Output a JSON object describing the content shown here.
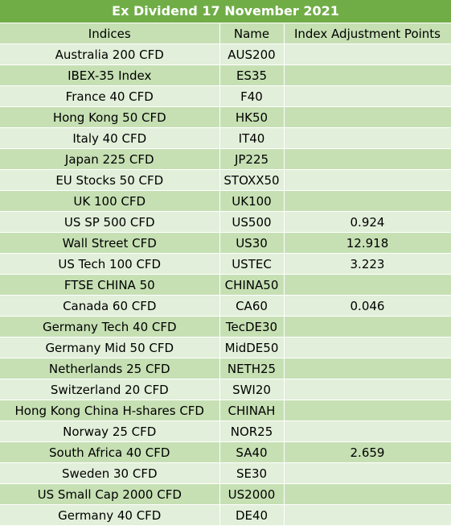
{
  "title": "Ex Dividend 17 November 2021",
  "headers": [
    "Indices",
    "Name",
    "Index Adjustment Points"
  ],
  "rows": [
    {
      "index": "Australia 200 CFD",
      "name": "AUS200",
      "points": ""
    },
    {
      "index": "IBEX-35 Index",
      "name": "ES35",
      "points": ""
    },
    {
      "index": "France 40 CFD",
      "name": "F40",
      "points": ""
    },
    {
      "index": "Hong Kong 50 CFD",
      "name": "HK50",
      "points": ""
    },
    {
      "index": "Italy 40 CFD",
      "name": "IT40",
      "points": ""
    },
    {
      "index": "Japan 225 CFD",
      "name": "JP225",
      "points": ""
    },
    {
      "index": "EU Stocks 50 CFD",
      "name": "STOXX50",
      "points": ""
    },
    {
      "index": "UK 100 CFD",
      "name": "UK100",
      "points": ""
    },
    {
      "index": "US SP 500 CFD",
      "name": "US500",
      "points": "0.924"
    },
    {
      "index": "Wall Street CFD",
      "name": "US30",
      "points": "12.918"
    },
    {
      "index": "US Tech 100 CFD",
      "name": "USTEC",
      "points": "3.223"
    },
    {
      "index": "FTSE CHINA 50",
      "name": "CHINA50",
      "points": ""
    },
    {
      "index": "Canada 60 CFD",
      "name": "CA60",
      "points": "0.046"
    },
    {
      "index": "Germany Tech 40 CFD",
      "name": "TecDE30",
      "points": ""
    },
    {
      "index": "Germany Mid 50 CFD",
      "name": "MidDE50",
      "points": ""
    },
    {
      "index": "Netherlands 25 CFD",
      "name": "NETH25",
      "points": ""
    },
    {
      "index": "Switzerland 20 CFD",
      "name": "SWI20",
      "points": ""
    },
    {
      "index": "Hong Kong China H-shares CFD",
      "name": "CHINAH",
      "points": ""
    },
    {
      "index": "Norway 25 CFD",
      "name": "NOR25",
      "points": ""
    },
    {
      "index": "South Africa 40 CFD",
      "name": "SA40",
      "points": "2.659"
    },
    {
      "index": "Sweden 30 CFD",
      "name": "SE30",
      "points": ""
    },
    {
      "index": "US Small Cap 2000 CFD",
      "name": "US2000",
      "points": ""
    },
    {
      "index": "Germany 40 CFD",
      "name": "DE40",
      "points": ""
    }
  ],
  "colors": {
    "title_bg": "#70ad47",
    "header_bg": "#c6e0b4",
    "row_light": "#e2efda",
    "row_dark": "#c6e0b4"
  }
}
